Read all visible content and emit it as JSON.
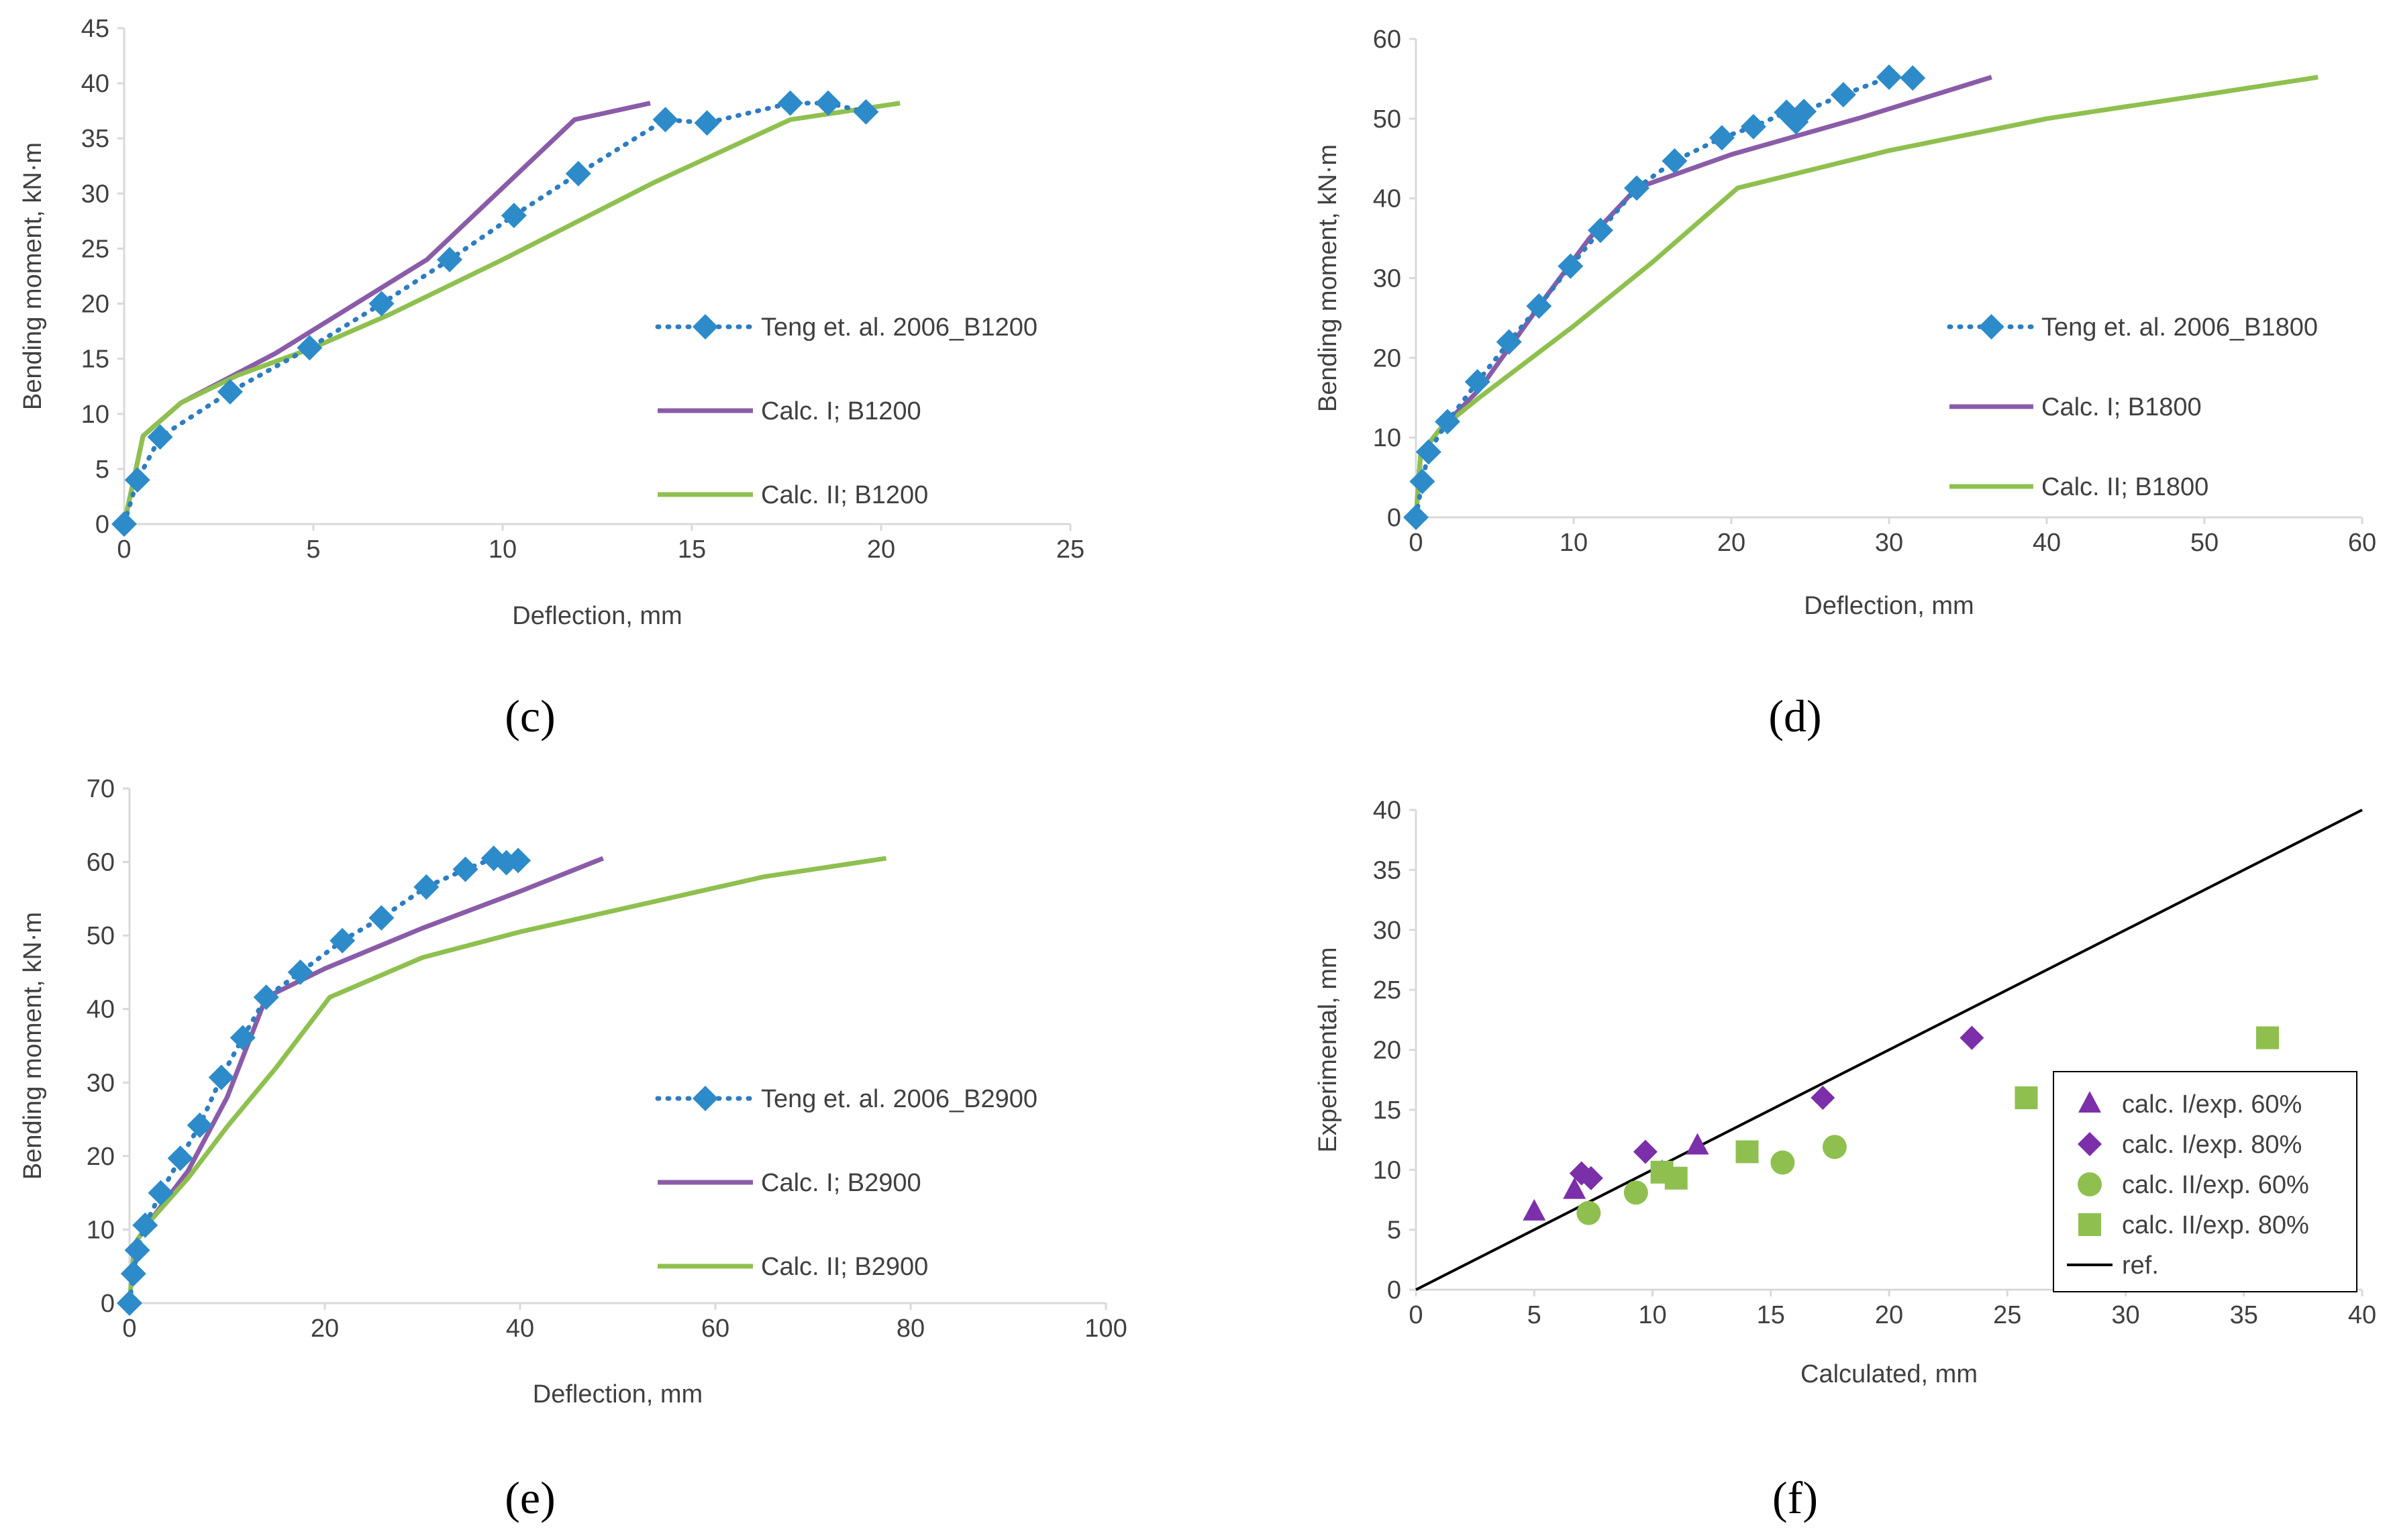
{
  "colors": {
    "experimental": "#2e7dc1",
    "experimental_marker": "#2e8bc9",
    "calc1": "#8a5ca8",
    "calc2": "#8fc04f",
    "f_calc1": "#7b2fa8",
    "f_calc2": "#8fc04f",
    "ref": "#000000"
  },
  "chart_data": [
    {
      "id": "c",
      "type": "line",
      "panel_label": "(c)",
      "xlabel": "Deflection, mm",
      "ylabel": "Bending moment, kN·m",
      "xlim": [
        0,
        25
      ],
      "ylim": [
        0,
        45
      ],
      "xticks": [
        0,
        5,
        10,
        15,
        20,
        25
      ],
      "yticks": [
        0,
        5,
        10,
        15,
        20,
        25,
        30,
        35,
        40,
        45
      ],
      "legend_position": "right",
      "series": [
        {
          "name": "Teng et. al. 2006_B1200",
          "style": "experimental",
          "x": [
            0,
            0.35,
            0.95,
            2.8,
            4.9,
            6.8,
            8.6,
            10.3,
            12.0,
            14.3,
            15.4,
            17.6,
            18.6,
            19.6
          ],
          "y": [
            0,
            4,
            7.9,
            12,
            16,
            20,
            24,
            28,
            31.8,
            36.7,
            36.4,
            38.2,
            38.2,
            37.4
          ]
        },
        {
          "name": "Calc. I; B1200",
          "style": "calc1",
          "x": [
            0,
            0.5,
            1.5,
            4.0,
            8.0,
            11.9,
            13.9
          ],
          "y": [
            0,
            8,
            11,
            15.5,
            24,
            36.7,
            38.2
          ]
        },
        {
          "name": "Calc. II; B1200",
          "style": "calc2",
          "x": [
            0,
            0.5,
            1.5,
            3.0,
            5.0,
            7.0,
            10.0,
            14.0,
            17.6,
            20.5
          ],
          "y": [
            0,
            8,
            11,
            13.5,
            16,
            19,
            24,
            31,
            36.7,
            38.2
          ]
        }
      ]
    },
    {
      "id": "d",
      "type": "line",
      "panel_label": "(d)",
      "xlabel": "Deflection, mm",
      "ylabel": "Bending moment, kN·m",
      "xlim": [
        0,
        60
      ],
      "ylim": [
        0,
        60
      ],
      "xticks": [
        0,
        10,
        20,
        30,
        40,
        50,
        60
      ],
      "yticks": [
        0,
        10,
        20,
        30,
        40,
        50,
        60
      ],
      "legend_position": "right",
      "series": [
        {
          "name": "Teng et. al. 2006_B1800",
          "style": "experimental",
          "x": [
            0,
            0.4,
            0.8,
            2.0,
            3.9,
            5.9,
            7.8,
            9.8,
            11.7,
            14.0,
            16.4,
            19.4,
            21.4,
            23.5,
            24.1,
            24.6,
            27.1,
            30.0,
            31.5
          ],
          "y": [
            0,
            4.5,
            8.2,
            12,
            17,
            22,
            26.5,
            31.5,
            36,
            41.3,
            44.7,
            47.6,
            49,
            50.8,
            49.6,
            50.9,
            53,
            55.2,
            55.1
          ]
        },
        {
          "name": "Calc. I; B1800",
          "style": "calc1",
          "x": [
            0,
            0.3,
            1.5,
            4.0,
            8.0,
            11.0,
            14.0,
            20.0,
            28.0,
            36.5
          ],
          "y": [
            0,
            8,
            11,
            16,
            27,
            35,
            41.3,
            45.5,
            50,
            55.2
          ]
        },
        {
          "name": "Calc. II; B1800",
          "style": "calc2",
          "x": [
            0,
            0.3,
            1.5,
            4.0,
            10.0,
            15.0,
            20.4,
            30.0,
            40.0,
            50.0,
            57.2
          ],
          "y": [
            0,
            8,
            11,
            15,
            24,
            32,
            41.3,
            46,
            50,
            53,
            55.2
          ]
        }
      ]
    },
    {
      "id": "e",
      "type": "line",
      "panel_label": "(e)",
      "xlabel": "Deflection, mm",
      "ylabel": "Bending moment, kN·m",
      "xlim": [
        0,
        100
      ],
      "ylim": [
        0,
        70
      ],
      "xticks": [
        0,
        20,
        40,
        60,
        80,
        100
      ],
      "yticks": [
        0,
        10,
        20,
        30,
        40,
        50,
        60,
        70
      ],
      "legend_position": "right",
      "series": [
        {
          "name": "Teng et. al. 2006_B2900",
          "style": "experimental",
          "x": [
            0,
            0.4,
            0.8,
            1.6,
            3.2,
            5.2,
            7.2,
            9.4,
            11.6,
            14.0,
            17.5,
            21.8,
            25.8,
            30.4,
            34.4,
            37.3,
            38.6,
            39.8
          ],
          "y": [
            0,
            4,
            7.2,
            10.6,
            15,
            19.7,
            24.2,
            30.7,
            36.1,
            41.6,
            45,
            49.3,
            52.4,
            56.6,
            59,
            60.5,
            59.9,
            60.2
          ]
        },
        {
          "name": "Calc. I; B2900",
          "style": "calc1",
          "x": [
            0,
            0.5,
            2.0,
            6.0,
            10.0,
            14.0,
            20.0,
            30.0,
            40.0,
            48.5
          ],
          "y": [
            0,
            8,
            11,
            18,
            28,
            41.6,
            45.5,
            51,
            56,
            60.5
          ]
        },
        {
          "name": "Calc. II; B2900",
          "style": "calc2",
          "x": [
            0,
            0.5,
            2.0,
            6.0,
            10.0,
            15.0,
            20.5,
            30.0,
            40.0,
            55.0,
            65.0,
            77.5
          ],
          "y": [
            0,
            8,
            11,
            17,
            24,
            32,
            41.6,
            47,
            50.5,
            55,
            58,
            60.5
          ]
        }
      ]
    },
    {
      "id": "f",
      "type": "scatter",
      "panel_label": "(f)",
      "xlabel": "Calculated, mm",
      "ylabel": "Experimental, mm",
      "xlim": [
        0,
        40
      ],
      "ylim": [
        0,
        40
      ],
      "xticks": [
        0,
        5,
        10,
        15,
        20,
        25,
        30,
        35,
        40
      ],
      "yticks": [
        0,
        5,
        10,
        15,
        20,
        25,
        30,
        35,
        40
      ],
      "legend_position": "bottom-right",
      "series": [
        {
          "name": "calc. I/exp. 60%",
          "marker": "triangle",
          "color_key": "f_calc1",
          "x": [
            5.0,
            6.7,
            10.4,
            11.9
          ],
          "y": [
            6.5,
            8.3,
            9.8,
            12.0
          ]
        },
        {
          "name": "calc. I/exp. 80%",
          "marker": "diamond",
          "color_key": "f_calc1",
          "x": [
            7.0,
            7.4,
            9.7,
            17.2,
            23.5
          ],
          "y": [
            9.7,
            9.3,
            11.5,
            16.0,
            21.0
          ]
        },
        {
          "name": "calc. II/exp. 60%",
          "marker": "circle",
          "color_key": "f_calc2",
          "x": [
            7.3,
            9.3,
            15.5,
            17.7
          ],
          "y": [
            6.4,
            8.1,
            10.6,
            11.9
          ]
        },
        {
          "name": "calc. II/exp. 80%",
          "marker": "square",
          "color_key": "f_calc2",
          "x": [
            10.4,
            11.0,
            14.0,
            25.8,
            36.0
          ],
          "y": [
            9.8,
            9.3,
            11.5,
            16.0,
            21.0
          ]
        },
        {
          "name": "ref.",
          "marker": "line",
          "color_key": "ref",
          "x": [
            0,
            40
          ],
          "y": [
            0,
            40
          ]
        }
      ]
    }
  ]
}
